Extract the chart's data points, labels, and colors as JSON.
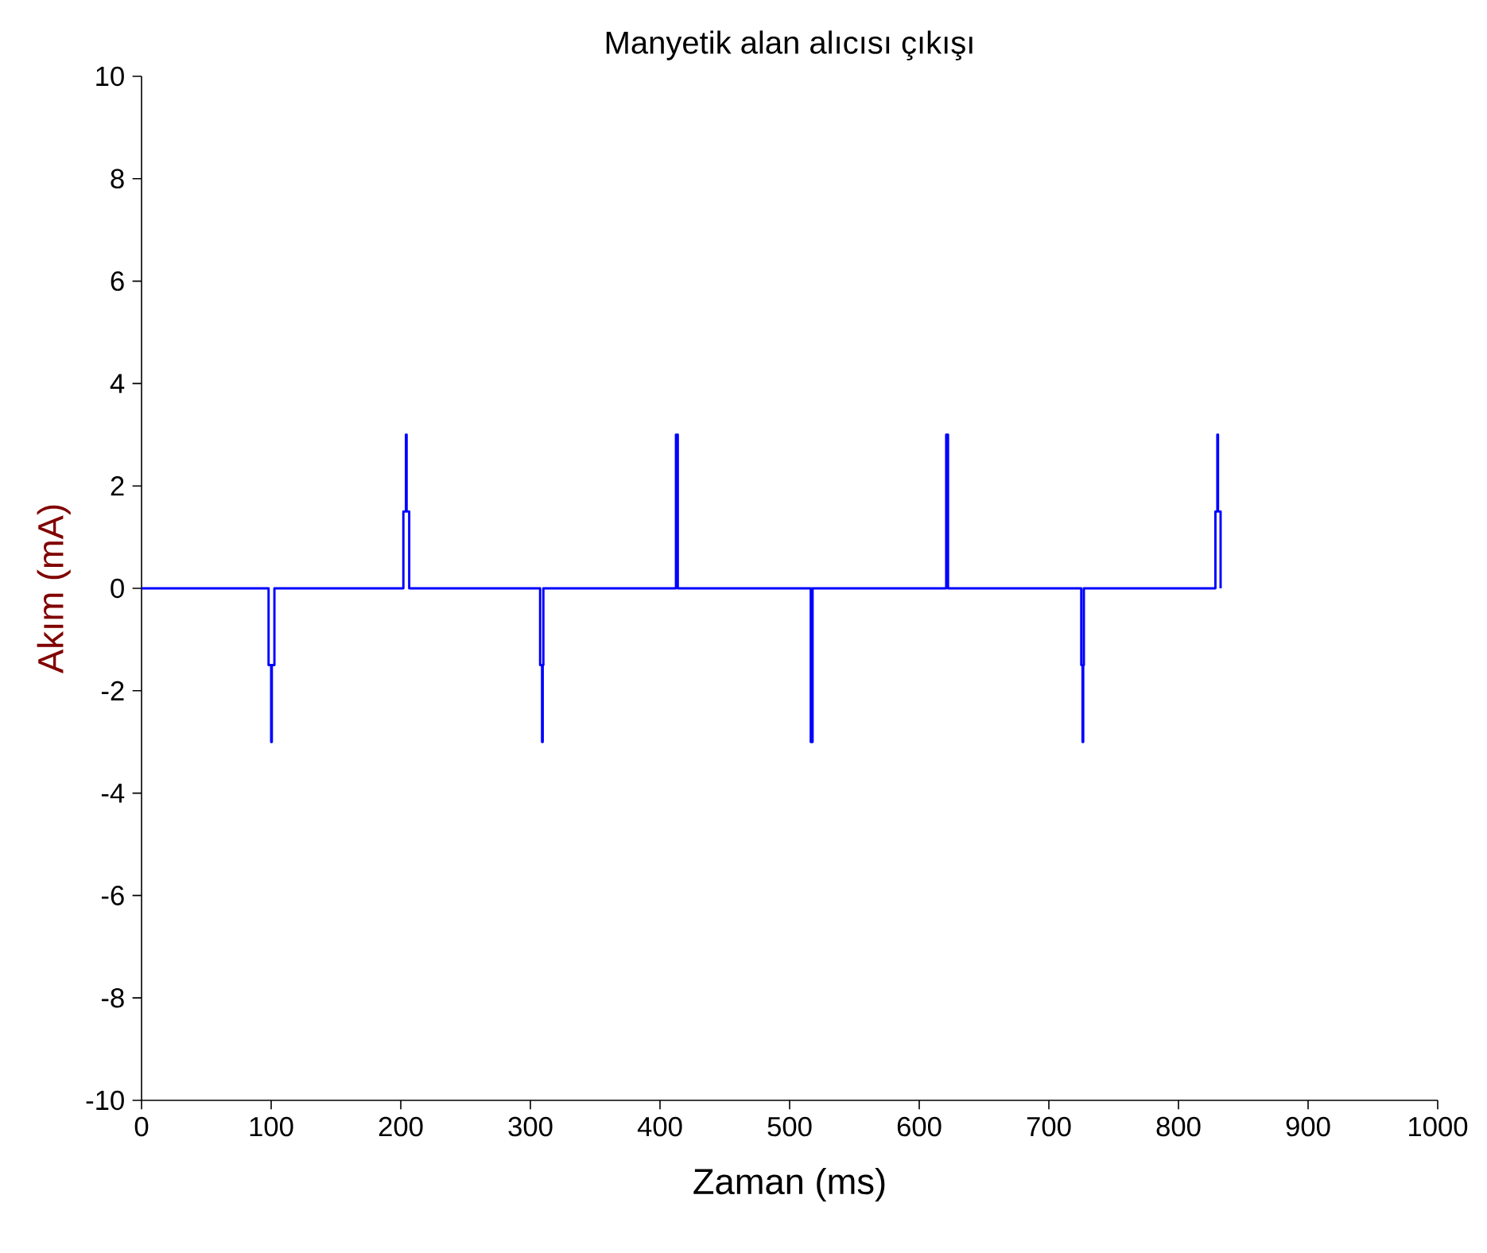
{
  "chart_data": {
    "type": "line",
    "title": "Manyetik alan alıcısı çıkışı",
    "xlabel": "Zaman (ms)",
    "ylabel": "Akım (mA)",
    "xlim": [
      0,
      1000
    ],
    "ylim": [
      -10,
      10
    ],
    "xticks": [
      0,
      100,
      200,
      300,
      400,
      500,
      600,
      700,
      800,
      900,
      1000
    ],
    "yticks": [
      -10,
      -8,
      -6,
      -4,
      -2,
      0,
      2,
      4,
      6,
      8,
      10
    ],
    "marker": "none",
    "line_style": "solid",
    "series": [
      {
        "color": "#0000ff",
        "x": [
          0,
          98,
          98,
          100,
          100,
          100.5,
          100.5,
          102.5,
          102.5,
          202,
          202,
          204,
          204,
          204.5,
          204.5,
          206.5,
          206.5,
          307.5,
          307.5,
          309,
          309,
          309.5,
          309.5,
          310,
          310,
          412.3,
          412.3,
          413.7,
          413.7,
          516.3,
          516.3,
          517.7,
          517.7,
          620.8,
          620.8,
          622.2,
          622.2,
          725,
          725,
          726,
          726,
          726.5,
          726.5,
          727,
          727,
          828.5,
          828.5,
          830,
          830,
          830.5,
          830.5,
          832.5,
          832.5
        ],
        "values": [
          0,
          0,
          -1.5,
          -1.5,
          -3,
          -3,
          -1.5,
          -1.5,
          0,
          0,
          1.5,
          1.5,
          3,
          3,
          1.5,
          1.5,
          0,
          0,
          -1.5,
          -1.5,
          -3,
          -3,
          -1.5,
          -1.5,
          0,
          0,
          3,
          3,
          0,
          0,
          -3,
          -3,
          0,
          0,
          3,
          3,
          0,
          0,
          -1.5,
          -1.5,
          -3,
          -3,
          -1.5,
          -1.5,
          0,
          0,
          1.5,
          1.5,
          3,
          3,
          1.5,
          1.5,
          0
        ]
      }
    ]
  }
}
